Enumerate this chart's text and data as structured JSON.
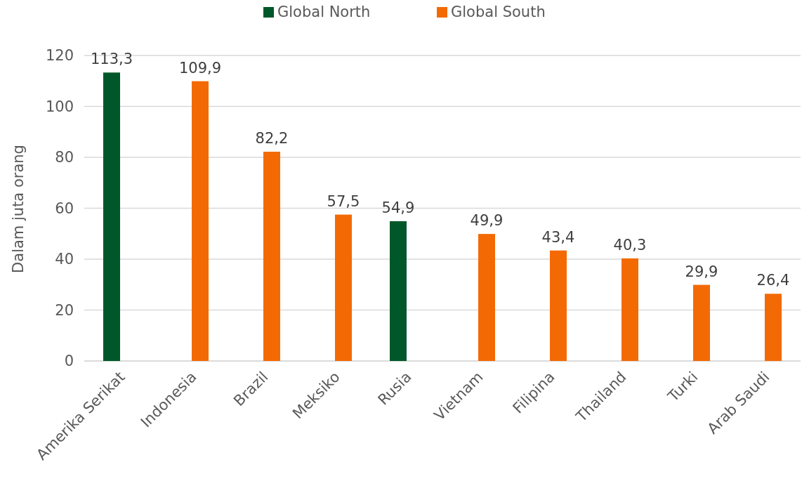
{
  "chart_data": {
    "type": "bar",
    "ylabel": "Dalam juta orang",
    "categories": [
      "Amerika Serikat",
      "Indonesia",
      "Brazil",
      "Meksiko",
      "Rusia",
      "Vietnam",
      "Filipina",
      "Thailand",
      "Turki",
      "Arab Saudi"
    ],
    "series": [
      {
        "name": "Global North",
        "color": "#00582a",
        "values": [
          113.3,
          null,
          null,
          null,
          54.9,
          null,
          null,
          null,
          null,
          null
        ],
        "value_labels": [
          "113,3",
          null,
          null,
          null,
          "54,9",
          null,
          null,
          null,
          null,
          null
        ]
      },
      {
        "name": "Global South",
        "color": "#f36a05",
        "values": [
          null,
          109.9,
          82.2,
          57.5,
          null,
          49.9,
          43.4,
          40.3,
          29.9,
          26.4
        ],
        "value_labels": [
          null,
          "109,9",
          "82,2",
          "57,5",
          null,
          "49,9",
          "43,4",
          "40,3",
          "29,9",
          "26,4"
        ]
      }
    ],
    "ylim": [
      0,
      120
    ],
    "yticks": [
      0,
      20,
      40,
      60,
      80,
      100,
      120
    ],
    "grid": "y",
    "legend": "top"
  }
}
